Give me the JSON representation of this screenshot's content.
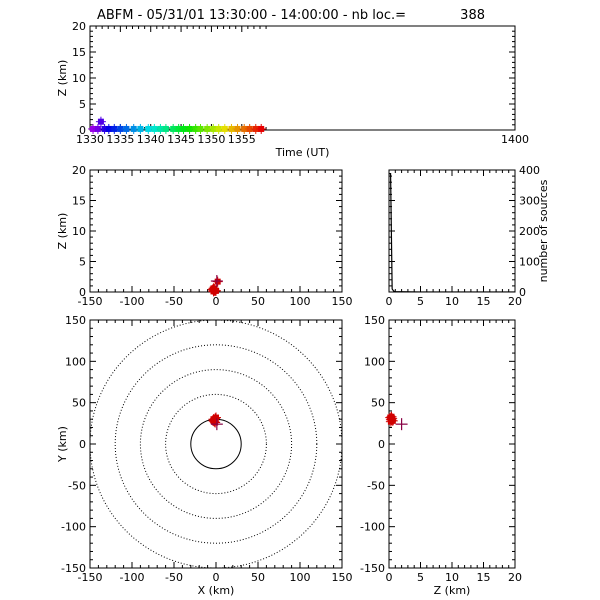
{
  "header": {
    "title": "ABFM - 05/31/01 13:30:00 - 14:00:00 - nb loc.=",
    "count": "388"
  },
  "chart_data": [
    {
      "id": "time-height",
      "type": "scatter",
      "xlabel": "Time (UT)",
      "ylabel": "Z (km)",
      "xlim": [
        1330,
        1400
      ],
      "ylim": [
        0,
        20
      ],
      "xticks": [
        1330,
        1335,
        1340,
        1345,
        1350,
        1355,
        1400
      ],
      "yticks": [
        0,
        5,
        10,
        15,
        20
      ],
      "color_by_time": true,
      "x": [
        1330.5,
        1331.3,
        1331.8,
        1332.4,
        1333.1,
        1334.0,
        1335.0,
        1336.0,
        1337.2,
        1338.3,
        1339.6,
        1340.6,
        1341.6,
        1342.5,
        1343.7,
        1344.6,
        1345.4,
        1346.4,
        1347.4,
        1348.2,
        1349.3,
        1350.3,
        1351.2,
        1352.2,
        1353.3,
        1354.3,
        1355.4,
        1356.3,
        1357.3,
        1358.2
      ],
      "y": [
        0.2,
        0.2,
        1.6,
        0.2,
        0.2,
        0.2,
        0.2,
        0.2,
        0.2,
        0.2,
        0.2,
        0.2,
        0.2,
        0.2,
        0.2,
        0.2,
        0.2,
        0.2,
        0.2,
        0.2,
        0.2,
        0.2,
        0.2,
        0.2,
        0.2,
        0.2,
        0.2,
        0.2,
        0.2,
        0.2
      ]
    },
    {
      "id": "x-height",
      "type": "scatter",
      "xlabel": "",
      "ylabel": "Z (km)",
      "xlim": [
        -150,
        150
      ],
      "ylim": [
        0,
        20
      ],
      "xticks": [
        -150,
        -100,
        -50,
        0,
        50,
        100,
        150
      ],
      "yticks": [
        0,
        5,
        10,
        15,
        20
      ],
      "x": [
        -3,
        -2,
        -3,
        -4,
        -1,
        -2,
        -3,
        -2,
        0,
        2
      ],
      "y": [
        0.1,
        0.2,
        0.3,
        0.4,
        0.2,
        0.5,
        0.6,
        0.3,
        0.2,
        1.7
      ],
      "cross_point": {
        "x": 1,
        "y": 1.8
      }
    },
    {
      "id": "height-histogram",
      "type": "line",
      "xlabel": "",
      "ylabel": "number of sources",
      "xlim": [
        0,
        20
      ],
      "ylim": [
        0,
        400
      ],
      "xticks": [
        0,
        5,
        10,
        15,
        20
      ],
      "yticks": [
        0,
        100,
        200,
        300,
        400
      ],
      "yaxis_side": "right",
      "x": [
        0,
        0.25,
        0.5,
        0.75,
        1,
        2,
        5,
        10,
        15,
        20
      ],
      "y": [
        388,
        388,
        10,
        3,
        1,
        1,
        0,
        0,
        0,
        0
      ]
    },
    {
      "id": "plan-view",
      "type": "scatter",
      "xlabel": "X (km)",
      "ylabel": "Y (km)",
      "xlim": [
        -150,
        150
      ],
      "ylim": [
        -150,
        150
      ],
      "xticks": [
        -150,
        -100,
        -50,
        0,
        50,
        100,
        150
      ],
      "yticks": [
        -150,
        -100,
        -50,
        0,
        50,
        100,
        150
      ],
      "range_rings_km": [
        30,
        60,
        90,
        120,
        150
      ],
      "x": [
        -3,
        -2,
        -1,
        -2,
        -3,
        0,
        -1
      ],
      "y": [
        30,
        29,
        31,
        27,
        28,
        32,
        26
      ],
      "cross_point": {
        "x": 1,
        "y": 24
      }
    },
    {
      "id": "height-y",
      "type": "scatter",
      "xlabel": "Z (km)",
      "ylabel": "",
      "xlim": [
        0,
        20
      ],
      "ylim": [
        -150,
        150
      ],
      "xticks": [
        0,
        5,
        10,
        15,
        20
      ],
      "yticks": [
        -150,
        -100,
        -50,
        0,
        50,
        100,
        150
      ],
      "x": [
        0.2,
        0.3,
        0.4,
        0.5,
        0.6,
        0.3,
        0.4
      ],
      "y": [
        32,
        30,
        29,
        31,
        28,
        27,
        33
      ],
      "cross_point": {
        "x": 2.0,
        "y": 24
      }
    }
  ],
  "colors": {
    "points": "#d00000",
    "cross": "#880044",
    "frame": "#000000"
  }
}
